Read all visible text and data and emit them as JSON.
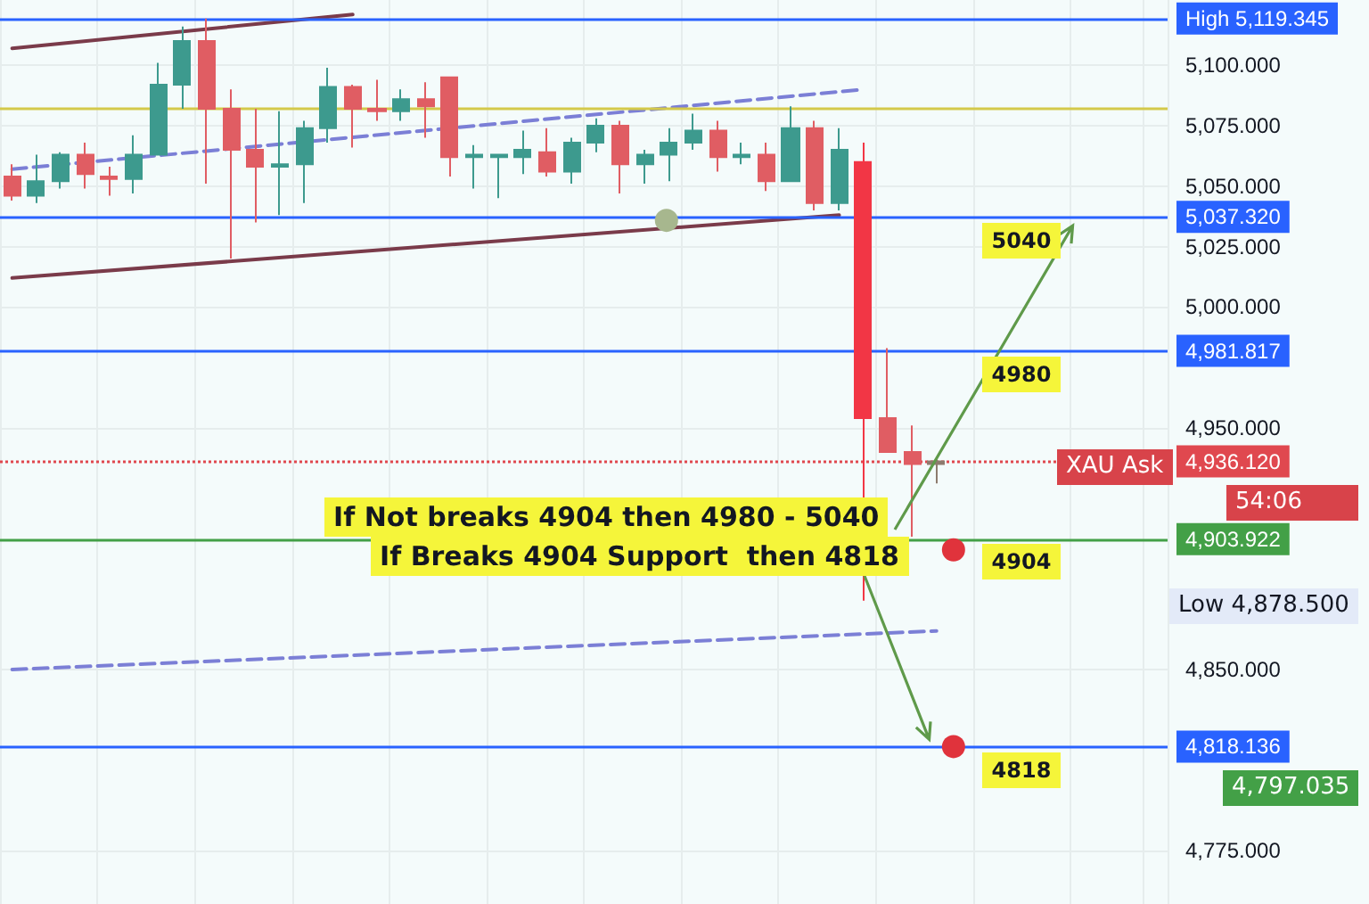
{
  "chart_data": {
    "type": "candlestick",
    "categories": [
      null,
      null,
      null,
      null,
      null,
      null,
      null,
      null,
      null,
      null,
      null,
      null,
      null,
      null,
      null,
      null,
      null,
      null,
      null,
      null,
      null,
      null,
      null,
      null,
      null,
      null,
      null,
      null,
      null,
      null,
      null,
      null,
      null,
      null,
      null,
      null,
      null,
      null,
      null,
      null,
      null,
      null,
      null,
      null,
      null,
      null,
      null,
      null
    ],
    "ohlc": [
      [
        5054,
        5059,
        5044,
        5046
      ],
      [
        5046,
        5063,
        5043,
        5052
      ],
      [
        5052,
        5064,
        5049,
        5063
      ],
      [
        5063,
        5068,
        5049,
        5055
      ],
      [
        5054,
        5058,
        5046,
        5053
      ],
      [
        5053,
        5071,
        5047,
        5063
      ],
      [
        5063,
        5101,
        5063,
        5092
      ],
      [
        5092,
        5116,
        5082,
        5110
      ],
      [
        5110,
        5119.345,
        5051,
        5082
      ],
      [
        5082,
        5090,
        5020,
        5065
      ],
      [
        5065,
        5082,
        5035,
        5058
      ],
      [
        5058,
        5081,
        5038,
        5059
      ],
      [
        5059,
        5077,
        5043,
        5074
      ],
      [
        5074,
        5099,
        5068,
        5091
      ],
      [
        5091,
        5092,
        5066,
        5082
      ],
      [
        5082,
        5094,
        5077,
        5081
      ],
      [
        5081,
        5090,
        5077,
        5086
      ],
      [
        5086,
        5093,
        5070,
        5083
      ],
      [
        5095,
        5095,
        5054,
        5062
      ],
      [
        5062,
        5067,
        5049,
        5063
      ],
      [
        5062,
        5063,
        5045,
        5063
      ],
      [
        5062,
        5073,
        5055,
        5065
      ],
      [
        5064,
        5074,
        5054,
        5056
      ],
      [
        5056,
        5070,
        5051,
        5068
      ],
      [
        5068,
        5078,
        5064,
        5075
      ],
      [
        5075,
        5077,
        5047,
        5059
      ],
      [
        5059,
        5065,
        5051,
        5063
      ],
      [
        5063,
        5074,
        5052,
        5068
      ],
      [
        5068,
        5080,
        5065,
        5073
      ],
      [
        5073,
        5077,
        5056,
        5062
      ],
      [
        5062,
        5068,
        5059,
        5063
      ],
      [
        5063,
        5068,
        5048,
        5052
      ],
      [
        5052,
        5083,
        5052,
        5074
      ],
      [
        5074,
        5077,
        5040,
        5043
      ],
      [
        5043,
        5074,
        5040,
        5065
      ],
      [
        5060,
        5068,
        4878.5,
        4954
      ],
      [
        4954,
        4983,
        4940,
        4940
      ],
      [
        4940,
        4951,
        4905,
        4935
      ],
      [
        4935,
        4937,
        4927,
        4936.12
      ],
      null,
      null,
      null,
      null,
      null,
      null,
      null,
      null,
      null
    ],
    "colors": [
      "#e05d63",
      "#3d9a8e",
      "#3d9a8e",
      "#e05d63",
      "#e05d63",
      "#3d9a8e",
      "#3d9a8e",
      "#3d9a8e",
      "#e05d63",
      "#e05d63",
      "#e05d63",
      "#3d9a8e",
      "#3d9a8e",
      "#3d9a8e",
      "#e05d63",
      "#e05d63",
      "#3d9a8e",
      "#e05d63",
      "#e05d63",
      "#3d9a8e",
      "#3d9a8e",
      "#3d9a8e",
      "#e05d63",
      "#3d9a8e",
      "#3d9a8e",
      "#e05d63",
      "#3d9a8e",
      "#3d9a8e",
      "#3d9a8e",
      "#e05d63",
      "#3d9a8e",
      "#e05d63",
      "#3d9a8e",
      "#e05d63",
      "#3d9a8e",
      "#f23645",
      "#e05d63",
      "#e05d63",
      "#8d7b6e",
      null,
      null,
      null,
      null,
      null,
      null,
      null,
      null,
      null
    ],
    "series": [
      {
        "type": "line",
        "color": "#7a3b4a",
        "line_style": "solid",
        "values": [
          5107,
          null,
          null,
          null,
          null,
          null,
          null,
          null,
          null,
          null,
          null,
          null,
          null,
          null,
          5121,
          null,
          null,
          null,
          null,
          null,
          null,
          null,
          null,
          null,
          null,
          null,
          null,
          null,
          null,
          null,
          null,
          null,
          null,
          null,
          null,
          null,
          null,
          null,
          null,
          null,
          null,
          null,
          null,
          null,
          null,
          null,
          null,
          null
        ]
      },
      {
        "type": "line",
        "color": "#7a3b4a",
        "line_style": "solid",
        "values": [
          5012,
          null,
          null,
          null,
          null,
          null,
          null,
          null,
          null,
          null,
          null,
          null,
          null,
          null,
          null,
          null,
          null,
          null,
          null,
          null,
          null,
          null,
          null,
          null,
          null,
          null,
          null,
          null,
          null,
          null,
          null,
          null,
          null,
          null,
          5038,
          null,
          null,
          null,
          null,
          null,
          null,
          null,
          null,
          null,
          null,
          null,
          null,
          null
        ]
      },
      {
        "type": "line",
        "color": "#7b7fd6",
        "line_style": "dashed",
        "values": [
          5057,
          null,
          null,
          null,
          null,
          null,
          null,
          null,
          null,
          null,
          null,
          null,
          null,
          null,
          null,
          null,
          null,
          null,
          null,
          null,
          null,
          null,
          null,
          null,
          null,
          null,
          null,
          null,
          null,
          null,
          null,
          null,
          null,
          null,
          null,
          5090,
          null,
          null,
          null,
          null,
          null,
          null,
          null,
          null,
          null,
          null,
          null,
          null
        ]
      },
      {
        "type": "line",
        "color": "#7b7fd6",
        "line_style": "dashed",
        "values": [
          4850,
          null,
          null,
          null,
          null,
          null,
          null,
          null,
          null,
          null,
          null,
          null,
          null,
          null,
          null,
          null,
          null,
          null,
          null,
          null,
          null,
          null,
          null,
          null,
          null,
          null,
          null,
          null,
          null,
          null,
          null,
          null,
          null,
          null,
          null,
          null,
          null,
          null,
          4866,
          null,
          null,
          null,
          null,
          null,
          null,
          null,
          null,
          null
        ]
      }
    ],
    "ylim": [
      4753,
      5127
    ],
    "yticks": [
      {
        "value": 5100,
        "label": "5,100.000"
      },
      {
        "value": 5075,
        "label": "5,075.000"
      },
      {
        "value": 5050,
        "label": "5,050.000"
      },
      {
        "value": 5025,
        "label": "5,025.000"
      },
      {
        "value": 5000,
        "label": "5,000.000"
      },
      {
        "value": 4950,
        "label": "4,950.000"
      },
      {
        "value": 4850,
        "label": "4,850.000"
      },
      {
        "value": 4775,
        "label": "4,775.000"
      }
    ],
    "tick_labels": "y",
    "grid": true,
    "ref_lines": [
      {
        "axis": "y",
        "value": 5119.345,
        "label": "High 5,119.345",
        "color": "#2962ff",
        "line_style": "solid"
      },
      {
        "axis": "y",
        "value": 5082.5,
        "color": "#d4c94a",
        "line_style": "solid"
      },
      {
        "axis": "y",
        "value": 5037.32,
        "label": "5,037.320",
        "color": "#2962ff",
        "line_style": "solid"
      },
      {
        "axis": "y",
        "value": 4981.817,
        "label": "4,981.817",
        "color": "#2962ff",
        "line_style": "solid"
      },
      {
        "axis": "y",
        "value": 4936.12,
        "label": "4,936.120",
        "color": "#e0484f",
        "line_style": "dotted"
      },
      {
        "axis": "y",
        "value": 4903.922,
        "label": "4,903.922",
        "color": "#43a047",
        "line_style": "solid"
      },
      {
        "axis": "y",
        "value": 4818.136,
        "label": "4,818.136",
        "color": "#2962ff",
        "line_style": "solid"
      }
    ],
    "annotations": [
      "If Not breaks 4904 then 4980 - 5040",
      "If Breaks 4904 Support  then 4818",
      {
        "text": "5040",
        "y": 5037.32
      },
      {
        "text": "4980",
        "y": 4981.817
      },
      {
        "text": "4904",
        "y": 4903.922
      },
      {
        "text": "4818",
        "y": 4818.136
      },
      "XAU Ask",
      "54:06",
      "Low 4,878.500",
      "4,797.035"
    ]
  }
}
